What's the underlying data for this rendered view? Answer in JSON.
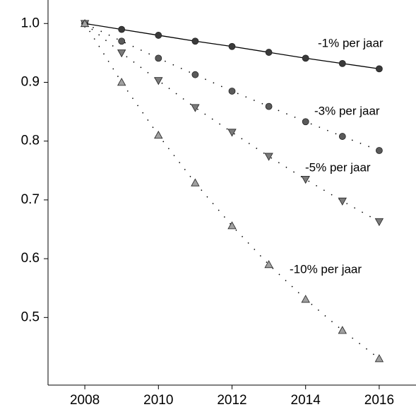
{
  "chart_data": {
    "type": "line",
    "x": [
      2008,
      2009,
      2010,
      2011,
      2012,
      2013,
      2014,
      2015,
      2016
    ],
    "series": [
      {
        "name": "-1% per jaar",
        "color": "#3a3a3a",
        "marker": "circle",
        "line": "solid",
        "values": [
          1.0,
          0.99,
          0.98,
          0.97,
          0.961,
          0.951,
          0.941,
          0.932,
          0.923
        ]
      },
      {
        "name": "-3% per jaar",
        "color": "#5a5a5a",
        "marker": "circle",
        "line": "dotted",
        "values": [
          1.0,
          0.97,
          0.941,
          0.913,
          0.885,
          0.859,
          0.833,
          0.808,
          0.784
        ]
      },
      {
        "name": "-5% per jaar",
        "color": "#7a7a7a",
        "marker": "triangle-down",
        "line": "dotted",
        "values": [
          1.0,
          0.95,
          0.903,
          0.857,
          0.815,
          0.774,
          0.735,
          0.698,
          0.663
        ]
      },
      {
        "name": "-10% per jaar",
        "color": "#a0a0a0",
        "marker": "triangle-up",
        "line": "dotted",
        "values": [
          1.0,
          0.9,
          0.81,
          0.729,
          0.656,
          0.59,
          0.531,
          0.478,
          0.43
        ]
      }
    ],
    "xlim": [
      2007,
      2017
    ],
    "xticks": [
      2008,
      2010,
      2012,
      2014,
      2016
    ],
    "ylim": [
      0.385,
      1.04
    ],
    "yticks": [
      {
        "value": 0.5,
        "label": "0.5"
      },
      {
        "value": 0.6,
        "label": "0.6"
      },
      {
        "value": 0.7,
        "label": "0.7"
      },
      {
        "value": 0.8,
        "label": "0.8"
      },
      {
        "value": 0.9,
        "label": "0.9"
      },
      {
        "value": 1.0,
        "label": "1.0"
      }
    ]
  }
}
